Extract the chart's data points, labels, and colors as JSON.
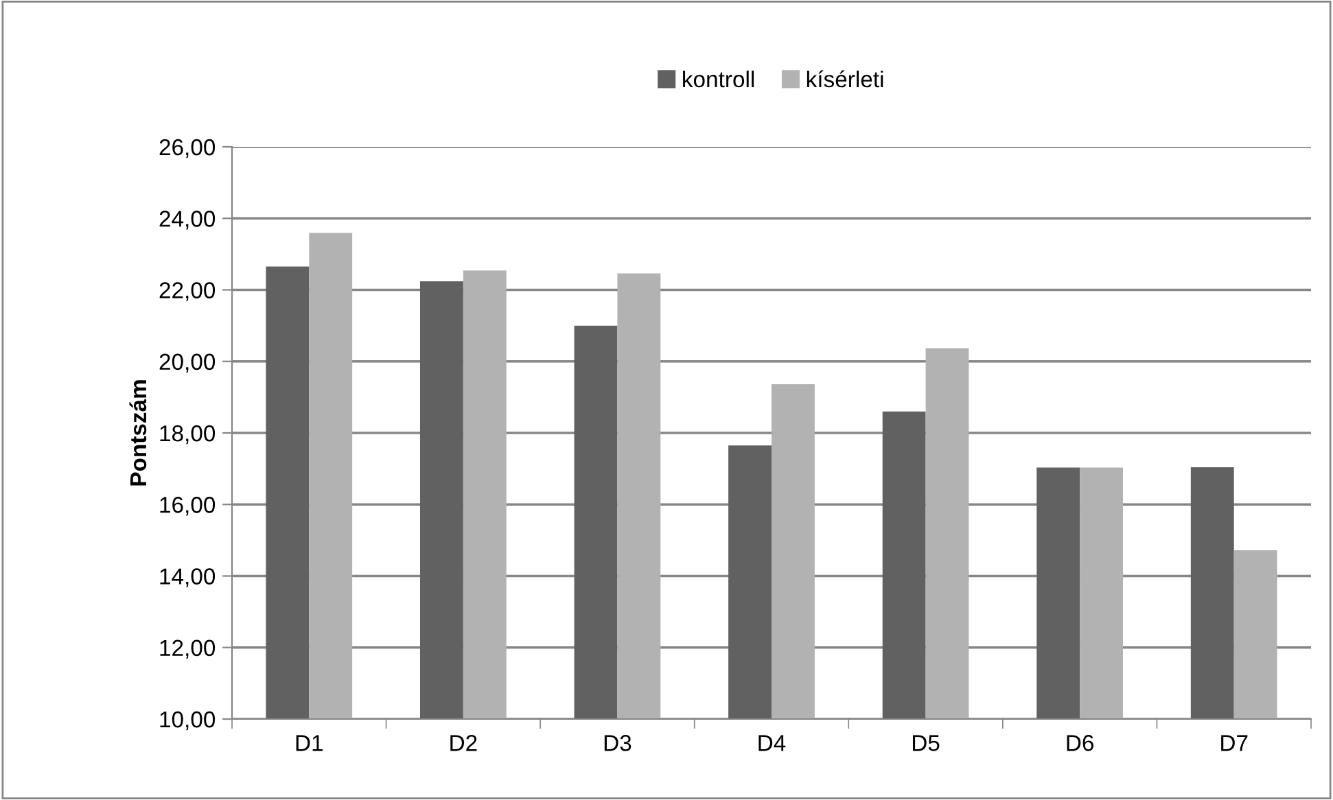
{
  "chart_data": {
    "type": "bar",
    "ylabel": "Pontszám",
    "categories": [
      "D1",
      "D2",
      "D3",
      "D4",
      "D5",
      "D6",
      "D7"
    ],
    "series": [
      {
        "name": "kontroll",
        "color": "#616161",
        "values": [
          22.65,
          22.24,
          21.0,
          17.65,
          18.6,
          17.03,
          17.04
        ]
      },
      {
        "name": "kísérleti",
        "color": "#b2b2b2",
        "values": [
          23.59,
          22.54,
          22.46,
          19.36,
          20.37,
          17.03,
          14.72
        ]
      }
    ],
    "ylim": [
      10,
      26
    ],
    "yticks": [
      {
        "value": 10,
        "label": "10,00"
      },
      {
        "value": 12,
        "label": "12,00"
      },
      {
        "value": 14,
        "label": "14,00"
      },
      {
        "value": 16,
        "label": "16,00"
      },
      {
        "value": 18,
        "label": "18,00"
      },
      {
        "value": 20,
        "label": "20,00"
      },
      {
        "value": 22,
        "label": "22,00"
      },
      {
        "value": 24,
        "label": "24,00"
      },
      {
        "value": 26,
        "label": "26,00"
      }
    ],
    "grid": "y",
    "legend": "top"
  }
}
